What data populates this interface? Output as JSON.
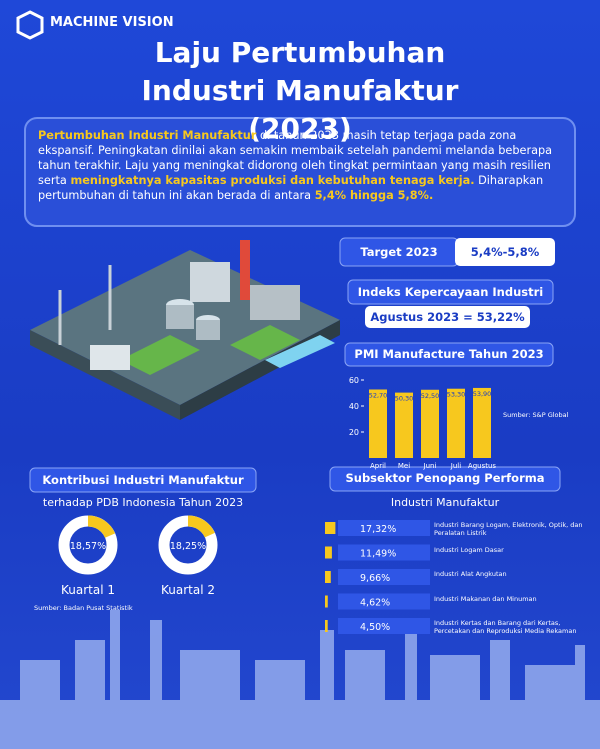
{
  "brand": "MACHINE VISION",
  "title": "Laju Pertumbuhan Industri Manufaktur (2023)",
  "intro": [
    {
      "text": "Pertumbuhan Industri Manufaktur",
      "highlight": true
    },
    {
      "text": " di tahun 2023 masih tetap terjaga pada zona ekspansif. Peningkatan dinilai akan semakin membaik setelah pandemi melanda beberapa tahun terakhir. Laju yang meningkat didorong oleh tingkat permintaan yang masih resilien serta ",
      "highlight": false
    },
    {
      "text": "meningkatnya kapasitas produksi dan kebutuhan tenaga kerja.",
      "highlight": true
    },
    {
      "text": " Diharapkan pertumbuhan di tahun ini akan berada di antara ",
      "highlight": false
    },
    {
      "text": "5,4% hingga 5,8%.",
      "highlight": true
    }
  ],
  "target": {
    "label": "Target 2023",
    "value": "5,4%-5,8%"
  },
  "confidence": {
    "label": "Indeks Kepercayaan Industri",
    "value": "Agustus 2023 = 53,22%"
  },
  "chart_data": [
    {
      "type": "bar",
      "title": "PMI Manufacture Tahun 2023",
      "categories": [
        "April",
        "Mei",
        "Juni",
        "Juli",
        "Agustus"
      ],
      "values": [
        52.7,
        50.3,
        52.5,
        53.3,
        53.9
      ],
      "value_labels": [
        "52,70",
        "50,30",
        "52,50",
        "53,30",
        "53,90"
      ],
      "ylim": [
        0,
        60
      ],
      "yticks": [
        20,
        40,
        60
      ],
      "color": "#f7c81e",
      "source": "Sumber: S&P Global"
    },
    {
      "type": "donut",
      "title": "Kontribusi Industri Manufaktur",
      "subtitle": "terhadap PDB Indonesia Tahun 2023",
      "categories": [
        "Kuartal 1",
        "Kuartal 2"
      ],
      "values": [
        18.57,
        18.25
      ],
      "value_labels": [
        "18,57%",
        "18,25%"
      ],
      "color": "#f7c81e",
      "source": "Sumber: Badan Pusat Statistik"
    },
    {
      "type": "hbar",
      "title": "Subsektor Penopang Performa",
      "subtitle": "Industri Manufaktur",
      "categories": [
        "Industri Barang Logam, Elektronik, Optik, dan Peralatan Listrik",
        "Industri Logam Dasar",
        "Industri Alat Angkutan",
        "Industri Makanan dan Minuman",
        "Industri Kertas dan Barang dari Kertas, Percetakan dan Reproduksi Media Rekaman"
      ],
      "values": [
        17.32,
        11.49,
        9.66,
        4.62,
        4.5
      ],
      "value_labels": [
        "17,32%",
        "11,49%",
        "9,66%",
        "4,62%",
        "4,50%"
      ],
      "color": "#f7c81e"
    }
  ]
}
